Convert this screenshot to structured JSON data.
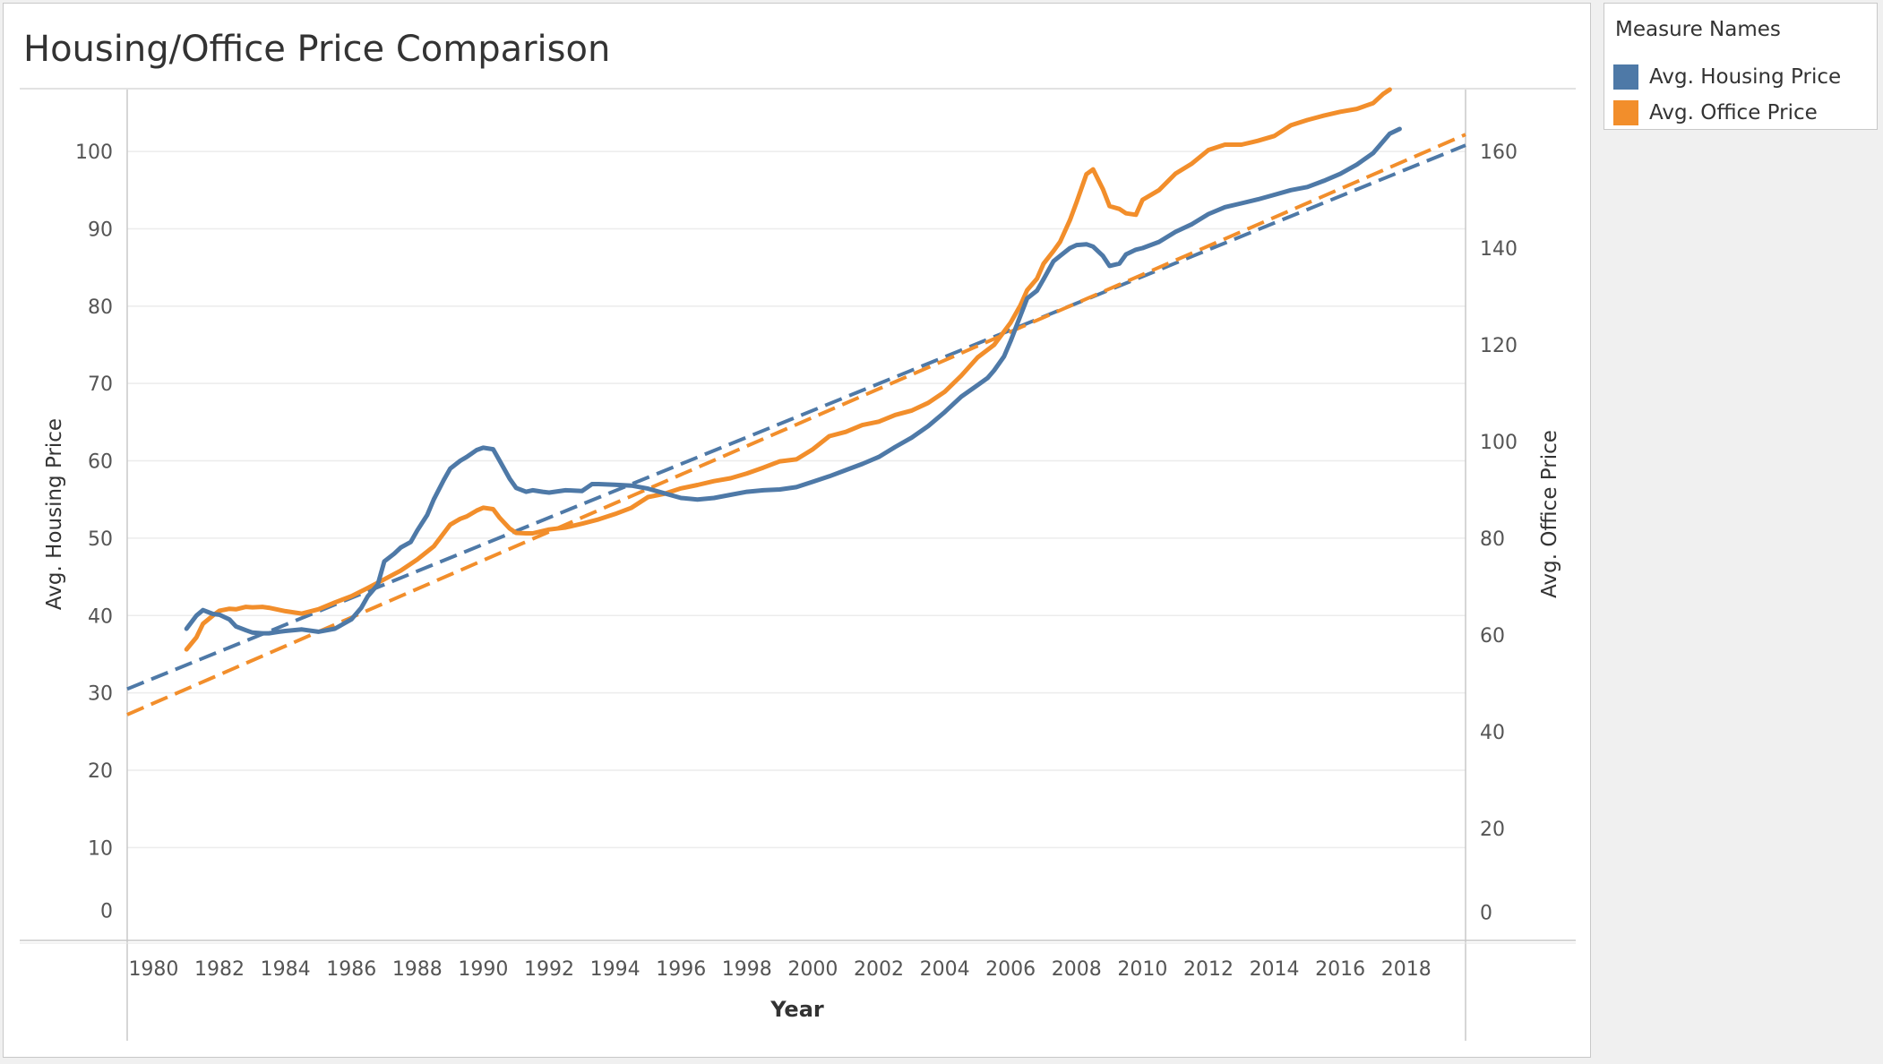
{
  "chart_data": {
    "type": "line",
    "title": "Housing/Office Price Comparison",
    "xlabel": "Year",
    "ylabel_left": "Avg. Housing Price",
    "ylabel_right": "Avg. Office Price",
    "xlim": [
      1979.2,
      2019.8
    ],
    "ylim_left": [
      -2,
      108
    ],
    "ylim_right": [
      -3.2,
      172.8
    ],
    "x_ticks": [
      1980,
      1982,
      1984,
      1986,
      1988,
      1990,
      1992,
      1994,
      1996,
      1998,
      2000,
      2002,
      2004,
      2006,
      2008,
      2010,
      2012,
      2014,
      2016,
      2018
    ],
    "y_ticks_left": [
      0,
      10,
      20,
      30,
      40,
      50,
      60,
      70,
      80,
      90,
      100
    ],
    "y_ticks_right": [
      0,
      20,
      40,
      60,
      80,
      100,
      120,
      140,
      160
    ],
    "grid": true,
    "legend_position": "right",
    "series": [
      {
        "name": "Avg. Housing Price",
        "axis": "left",
        "color": "#4e79a7",
        "x": [
          1981.0,
          1981.3,
          1981.5,
          1981.8,
          1982.0,
          1982.3,
          1982.5,
          1982.8,
          1983.0,
          1983.3,
          1983.5,
          1983.8,
          1984.0,
          1984.5,
          1985.0,
          1985.5,
          1986.0,
          1986.3,
          1986.5,
          1986.8,
          1987.0,
          1987.3,
          1987.5,
          1987.8,
          1988.0,
          1988.3,
          1988.5,
          1988.8,
          1989.0,
          1989.3,
          1989.5,
          1989.8,
          1990.0,
          1990.3,
          1990.5,
          1990.8,
          1991.0,
          1991.3,
          1991.5,
          1991.8,
          1992.0,
          1992.5,
          1993.0,
          1993.3,
          1993.5,
          1994.0,
          1994.5,
          1995.0,
          1995.5,
          1996.0,
          1996.5,
          1997.0,
          1997.5,
          1998.0,
          1998.5,
          1999.0,
          1999.5,
          2000.0,
          2000.5,
          2001.0,
          2001.5,
          2002.0,
          2002.5,
          2003.0,
          2003.5,
          2004.0,
          2004.5,
          2005.0,
          2005.3,
          2005.5,
          2005.8,
          2006.0,
          2006.3,
          2006.5,
          2006.8,
          2007.0,
          2007.3,
          2007.5,
          2007.8,
          2008.0,
          2008.3,
          2008.5,
          2008.8,
          2009.0,
          2009.3,
          2009.5,
          2009.8,
          2010.0,
          2010.5,
          2011.0,
          2011.5,
          2012.0,
          2012.5,
          2013.0,
          2013.5,
          2014.0,
          2014.5,
          2015.0,
          2015.5,
          2016.0,
          2016.5,
          2017.0,
          2017.3,
          2017.5,
          2017.8
        ],
        "values": [
          38.3,
          40.0,
          40.7,
          40.2,
          40.1,
          39.5,
          38.6,
          38.1,
          37.8,
          37.7,
          37.7,
          37.9,
          38.0,
          38.2,
          37.9,
          38.3,
          39.5,
          41.0,
          42.5,
          44.0,
          47.0,
          48.0,
          48.8,
          49.5,
          51.0,
          53.0,
          55.0,
          57.5,
          59.0,
          60.0,
          60.5,
          61.4,
          61.7,
          61.5,
          60.0,
          57.7,
          56.5,
          56.0,
          56.2,
          56.0,
          55.9,
          56.2,
          56.1,
          57.0,
          57.0,
          56.9,
          56.8,
          56.4,
          55.8,
          55.2,
          55.0,
          55.2,
          55.6,
          56.0,
          56.2,
          56.3,
          56.6,
          57.3,
          58.0,
          58.8,
          59.6,
          60.5,
          61.8,
          63.0,
          64.5,
          66.3,
          68.3,
          69.8,
          70.7,
          71.7,
          73.5,
          75.5,
          78.8,
          81.0,
          82.0,
          83.5,
          85.8,
          86.5,
          87.5,
          87.9,
          88.0,
          87.7,
          86.5,
          85.2,
          85.5,
          86.7,
          87.3,
          87.5,
          88.3,
          89.6,
          90.6,
          91.9,
          92.8,
          93.3,
          93.8,
          94.4,
          95.0,
          95.4,
          96.2,
          97.1,
          98.3,
          99.8,
          101.3,
          102.3,
          102.9
        ]
      },
      {
        "name": "Avg. Office Price",
        "axis": "right",
        "color": "#f28e2b",
        "x": [
          1981.0,
          1981.3,
          1981.5,
          1981.8,
          1982.0,
          1982.3,
          1982.5,
          1982.8,
          1983.0,
          1983.3,
          1983.5,
          1984.0,
          1984.5,
          1985.0,
          1985.5,
          1986.0,
          1986.5,
          1987.0,
          1987.5,
          1988.0,
          1988.5,
          1989.0,
          1989.3,
          1989.5,
          1989.8,
          1990.0,
          1990.3,
          1990.5,
          1990.8,
          1991.0,
          1991.3,
          1991.5,
          1992.0,
          1992.5,
          1993.0,
          1993.5,
          1994.0,
          1994.5,
          1995.0,
          1995.5,
          1996.0,
          1996.5,
          1997.0,
          1997.5,
          1998.0,
          1998.5,
          1999.0,
          1999.5,
          2000.0,
          2000.5,
          2001.0,
          2001.5,
          2002.0,
          2002.5,
          2003.0,
          2003.5,
          2004.0,
          2004.5,
          2005.0,
          2005.5,
          2006.0,
          2006.3,
          2006.5,
          2006.8,
          2007.0,
          2007.3,
          2007.5,
          2007.8,
          2008.0,
          2008.3,
          2008.5,
          2008.8,
          2009.0,
          2009.3,
          2009.5,
          2009.8,
          2010.0,
          2010.5,
          2011.0,
          2011.5,
          2012.0,
          2012.5,
          2013.0,
          2013.5,
          2014.0,
          2014.5,
          2015.0,
          2015.5,
          2016.0,
          2016.5,
          2017.0,
          2017.3,
          2017.5
        ],
        "values": [
          57.0,
          59.5,
          62.3,
          64.0,
          65.0,
          65.4,
          65.3,
          65.8,
          65.7,
          65.8,
          65.6,
          64.9,
          64.4,
          65.3,
          66.7,
          68.0,
          69.7,
          71.5,
          73.3,
          75.6,
          78.3,
          82.8,
          84.0,
          84.5,
          85.7,
          86.3,
          86.0,
          84.2,
          82.0,
          81.1,
          81.0,
          81.0,
          81.8,
          82.2,
          83.0,
          83.9,
          85.0,
          86.3,
          88.5,
          89.2,
          90.3,
          91.0,
          91.8,
          92.4,
          93.4,
          94.6,
          95.9,
          96.3,
          98.4,
          101.1,
          102.0,
          103.4,
          104.1,
          105.5,
          106.4,
          108.0,
          110.3,
          113.6,
          117.4,
          120.0,
          124.6,
          128.2,
          131.3,
          133.7,
          136.8,
          139.4,
          141.3,
          145.8,
          149.5,
          155.3,
          156.3,
          152.2,
          148.7,
          148.1,
          147.2,
          146.9,
          150.0,
          152.0,
          155.4,
          157.5,
          160.3,
          161.4,
          161.4,
          162.2,
          163.2,
          165.4,
          166.5,
          167.4,
          168.2,
          168.8,
          170.0,
          171.9,
          172.8
        ]
      }
    ],
    "trend_lines": [
      {
        "series": "Avg. Housing Price",
        "axis": "left",
        "x": [
          1979.2,
          2019.8
        ],
        "y": [
          30.5,
          100.8
        ]
      },
      {
        "series": "Avg. Office Price",
        "axis": "right",
        "x": [
          1979.2,
          2019.8
        ],
        "y": [
          43.5,
          163.5
        ]
      }
    ]
  },
  "legend": {
    "title": "Measure Names",
    "items": [
      {
        "label": "Avg. Housing Price",
        "color": "#4e79a7"
      },
      {
        "label": "Avg. Office Price",
        "color": "#f28e2b"
      }
    ]
  }
}
